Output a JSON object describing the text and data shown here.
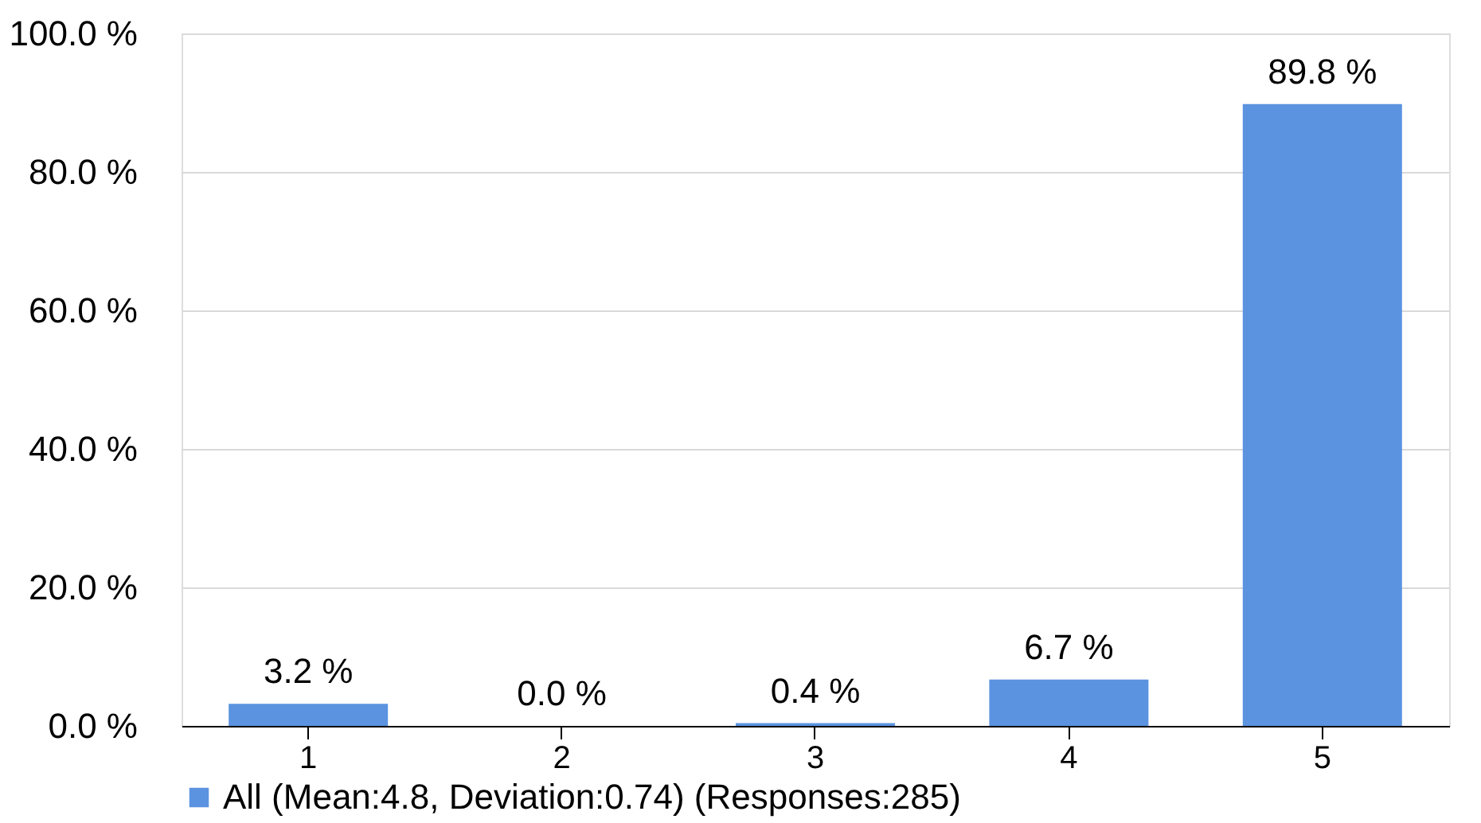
{
  "chart_data": {
    "type": "bar",
    "categories": [
      "1",
      "2",
      "3",
      "4",
      "5"
    ],
    "series": [
      {
        "name": "All (Mean:4.8, Deviation:0.74) (Responses:285)",
        "color": "#5b93e0",
        "values": [
          3.2,
          0.0,
          0.4,
          6.7,
          89.8
        ],
        "value_labels": [
          "3.2 %",
          "0.0 %",
          "0.4 %",
          "6.7 %",
          "89.8 %"
        ]
      }
    ],
    "ylim": [
      0,
      100
    ],
    "yticks": [
      {
        "value": 0,
        "label": "0.0 %"
      },
      {
        "value": 20,
        "label": "20.0 %"
      },
      {
        "value": 40,
        "label": "40.0 %"
      },
      {
        "value": 60,
        "label": "60.0 %"
      },
      {
        "value": 80,
        "label": "80.0 %"
      },
      {
        "value": 100,
        "label": "100.0 %"
      }
    ],
    "grid": "y",
    "legend": "bottom"
  }
}
